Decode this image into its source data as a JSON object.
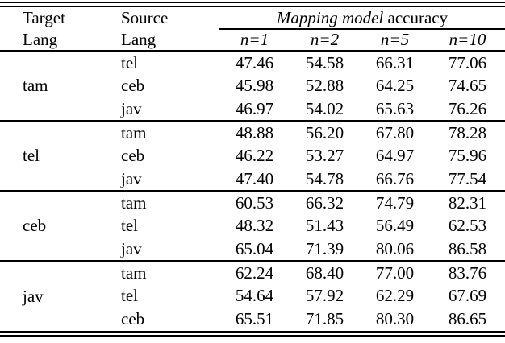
{
  "table": {
    "colors": {
      "text": "#000000",
      "background": "#ffffff",
      "rule": "#000000"
    },
    "header": {
      "target_line1": "Target",
      "target_line2": "Lang",
      "source_line1": "Source",
      "source_line2": "Lang",
      "accuracy_title_italic": "Mapping model",
      "accuracy_title_rest": " accuracy",
      "n_labels": [
        "n=1",
        "n=2",
        "n=5",
        "n=10"
      ]
    },
    "groups": [
      {
        "target": "tam",
        "rows": [
          {
            "source": "tel",
            "values": [
              "47.46",
              "54.58",
              "66.31",
              "77.06"
            ]
          },
          {
            "source": "ceb",
            "values": [
              "45.98",
              "52.88",
              "64.25",
              "74.65"
            ]
          },
          {
            "source": "jav",
            "values": [
              "46.97",
              "54.02",
              "65.63",
              "76.26"
            ]
          }
        ]
      },
      {
        "target": "tel",
        "rows": [
          {
            "source": "tam",
            "values": [
              "48.88",
              "56.20",
              "67.80",
              "78.28"
            ]
          },
          {
            "source": "ceb",
            "values": [
              "46.22",
              "53.27",
              "64.97",
              "75.96"
            ]
          },
          {
            "source": "jav",
            "values": [
              "47.40",
              "54.78",
              "66.76",
              "77.54"
            ]
          }
        ]
      },
      {
        "target": "ceb",
        "rows": [
          {
            "source": "tam",
            "values": [
              "60.53",
              "66.32",
              "74.79",
              "82.31"
            ]
          },
          {
            "source": "tel",
            "values": [
              "48.32",
              "51.43",
              "56.49",
              "62.53"
            ]
          },
          {
            "source": "jav",
            "values": [
              "65.04",
              "71.39",
              "80.06",
              "86.58"
            ]
          }
        ]
      },
      {
        "target": "jav",
        "rows": [
          {
            "source": "tam",
            "values": [
              "62.24",
              "68.40",
              "77.00",
              "83.76"
            ]
          },
          {
            "source": "tel",
            "values": [
              "54.64",
              "57.92",
              "62.29",
              "67.69"
            ]
          },
          {
            "source": "ceb",
            "values": [
              "65.51",
              "71.85",
              "80.30",
              "86.65"
            ]
          }
        ]
      }
    ]
  }
}
